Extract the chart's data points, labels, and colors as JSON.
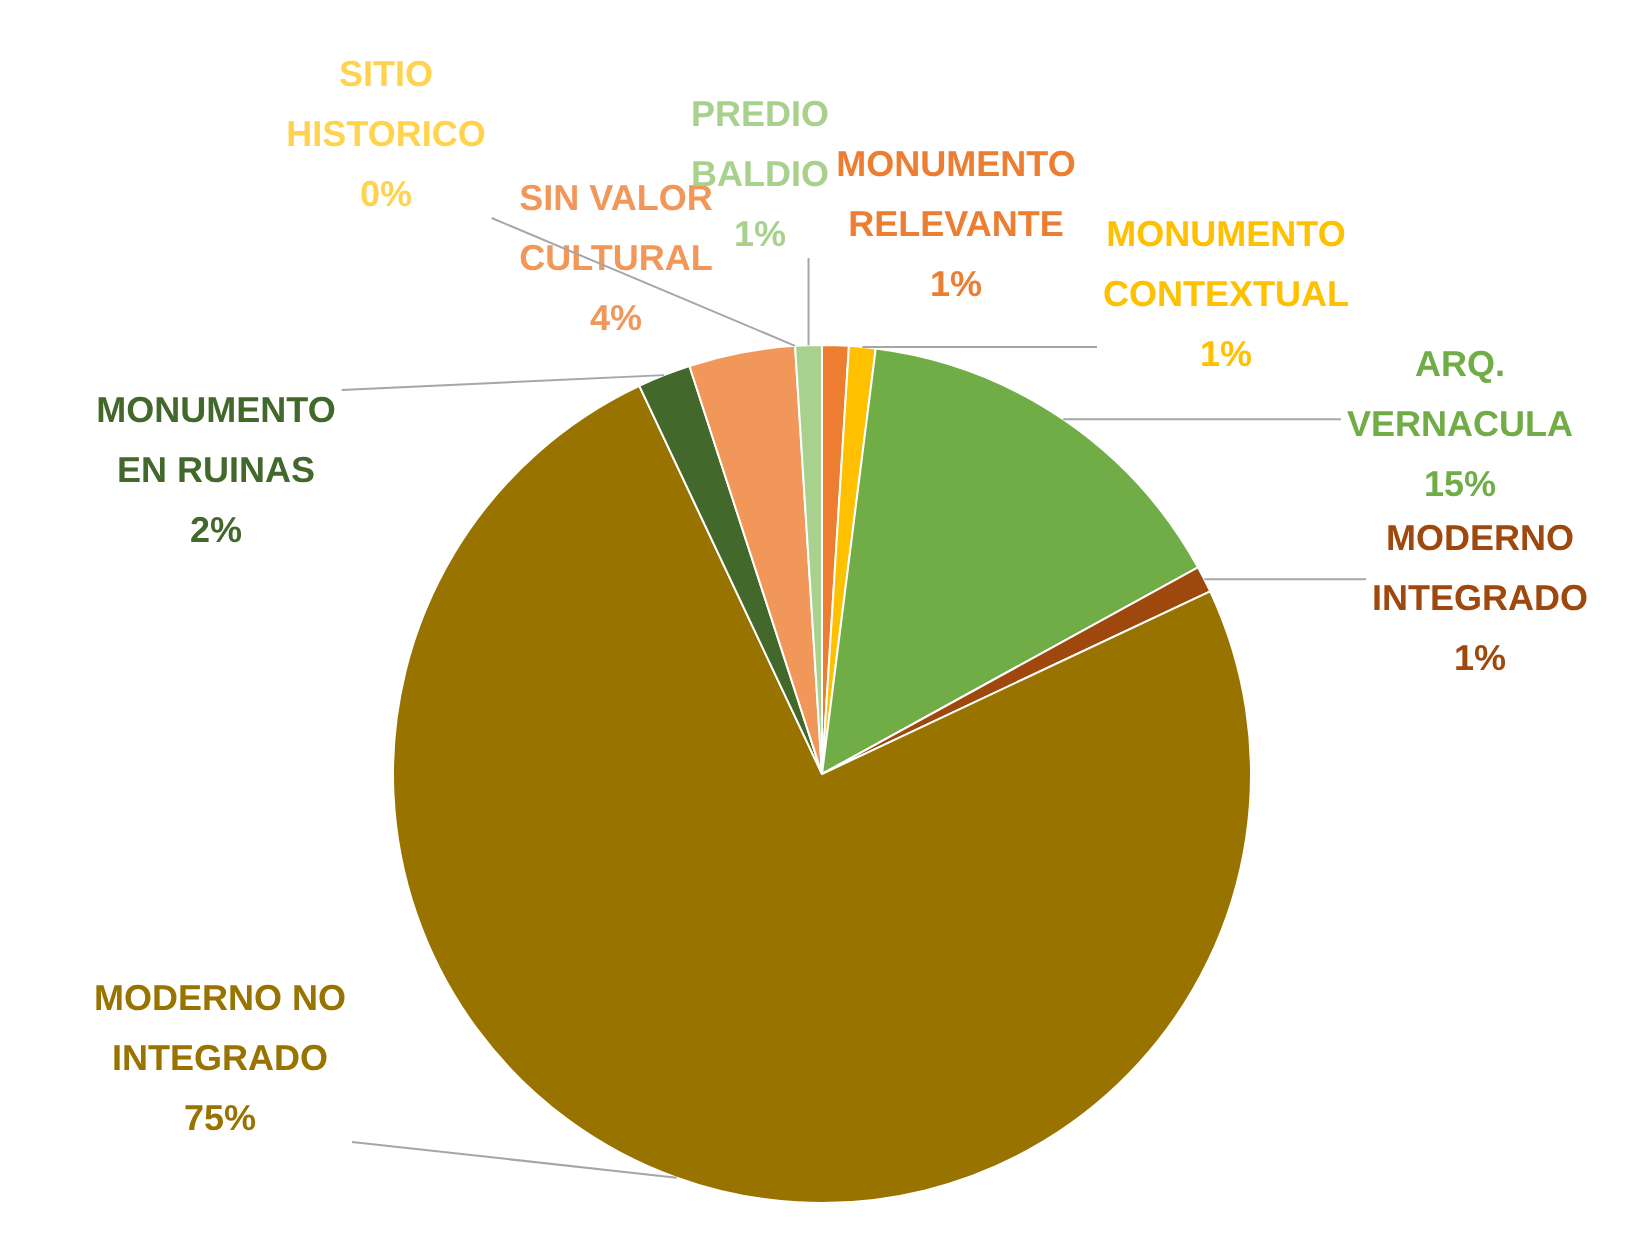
{
  "chart_data": {
    "type": "pie",
    "categories": [
      "MONUMENTO RELEVANTE",
      "MONUMENTO CONTEXTUAL",
      "ARQ. VERNACULA",
      "MODERNO INTEGRADO",
      "MODERNO NO INTEGRADO",
      "MONUMENTO EN RUINAS",
      "SIN VALOR CULTURAL",
      "SITIO HISTORICO",
      "PREDIO BALDIO"
    ],
    "values": [
      1,
      1,
      15,
      1,
      75,
      2,
      4,
      0,
      1
    ],
    "value_labels": [
      "1%",
      "1%",
      "15%",
      "1%",
      "75%",
      "2%",
      "4%",
      "0%",
      "1%"
    ],
    "colors": [
      "#ed7d31",
      "#ffc000",
      "#70ad47",
      "#9e480e",
      "#997300",
      "#43682b",
      "#f1975a",
      "#ffd34d",
      "#a9d18e"
    ],
    "legend": false
  }
}
